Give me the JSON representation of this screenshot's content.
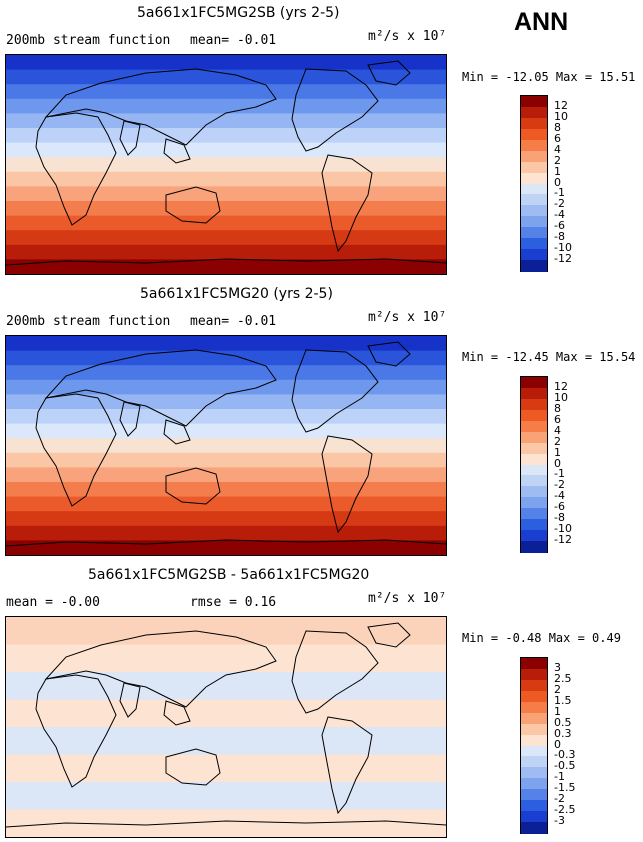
{
  "season": "ANN",
  "panels": [
    {
      "title": "5a661x1FC5MG2SB (yrs 2-5)",
      "subtitle": "200mb stream function",
      "stat1": "mean=  -0.01",
      "stat2": "",
      "units": "m²/s x 10⁷",
      "minmax": "Min = -12.05 Max =  15.51",
      "colorbar": {
        "labels": [
          "12",
          "10",
          "8",
          "6",
          "4",
          "2",
          "1",
          "0",
          "-1",
          "-2",
          "-4",
          "-6",
          "-8",
          "-10",
          "-12"
        ],
        "colors": [
          "#8b0000",
          "#b81d0a",
          "#d83a12",
          "#ee5a24",
          "#f67c48",
          "#f9a276",
          "#fbc7a6",
          "#fde3d2",
          "#dbe6f7",
          "#bfd3f4",
          "#9ebcf1",
          "#7ea3ee",
          "#5582e8",
          "#2c5ee0",
          "#1a3fd0",
          "#0b1f96"
        ]
      },
      "map_bands": [
        "#1632c9",
        "#2a55db",
        "#4a78e6",
        "#6e98ee",
        "#95b6f3",
        "#bcd2f8",
        "#dbe8fb",
        "#f8e2d2",
        "#fbc6a6",
        "#f8a37b",
        "#f47d4e",
        "#ea5a2a",
        "#d63a14",
        "#b81d0a",
        "#8b0000"
      ]
    },
    {
      "title": "5a661x1FC5MG20 (yrs 2-5)",
      "subtitle": "200mb stream function",
      "stat1": "mean=  -0.01",
      "stat2": "",
      "units": "m²/s x 10⁷",
      "minmax": "Min = -12.45 Max =  15.54",
      "colorbar": {
        "labels": [
          "12",
          "10",
          "8",
          "6",
          "4",
          "2",
          "1",
          "0",
          "-1",
          "-2",
          "-4",
          "-6",
          "-8",
          "-10",
          "-12"
        ],
        "colors": [
          "#8b0000",
          "#b81d0a",
          "#d83a12",
          "#ee5a24",
          "#f67c48",
          "#f9a276",
          "#fbc7a6",
          "#fde3d2",
          "#dbe6f7",
          "#bfd3f4",
          "#9ebcf1",
          "#7ea3ee",
          "#5582e8",
          "#2c5ee0",
          "#1a3fd0",
          "#0b1f96"
        ]
      },
      "map_bands": [
        "#1632c9",
        "#2a55db",
        "#4a78e6",
        "#6e98ee",
        "#95b6f3",
        "#bcd2f8",
        "#dbe8fb",
        "#f8e2d2",
        "#fbc6a6",
        "#f8a37b",
        "#f47d4e",
        "#ea5a2a",
        "#d63a14",
        "#b81d0a",
        "#8b0000"
      ]
    },
    {
      "title": "5a661x1FC5MG2SB - 5a661x1FC5MG20",
      "subtitle": "mean =  -0.00",
      "stat1": "rmse =   0.16",
      "stat2": "",
      "units": "m²/s x 10⁷",
      "minmax": "Min =  -0.48 Max =   0.49",
      "colorbar": {
        "labels": [
          "3",
          "2.5",
          "2",
          "1.5",
          "1",
          "0.5",
          "0.3",
          "0",
          "-0.3",
          "-0.5",
          "-1",
          "-1.5",
          "-2",
          "-2.5",
          "-3"
        ],
        "colors": [
          "#8b0000",
          "#b81d0a",
          "#d83a12",
          "#ee5a24",
          "#f67c48",
          "#f9a276",
          "#fbc7a6",
          "#fde3d2",
          "#dbe6f7",
          "#bfd3f4",
          "#9ebcf1",
          "#7ea3ee",
          "#5582e8",
          "#2c5ee0",
          "#1a3fd0",
          "#0b1f96"
        ]
      },
      "map_bands": [
        "#fbd3bb",
        "#fde3d2",
        "#dbe6f7",
        "#fde3d2",
        "#dbe6f7",
        "#fde3d2",
        "#dbe6f7",
        "#fde3d2"
      ]
    }
  ]
}
